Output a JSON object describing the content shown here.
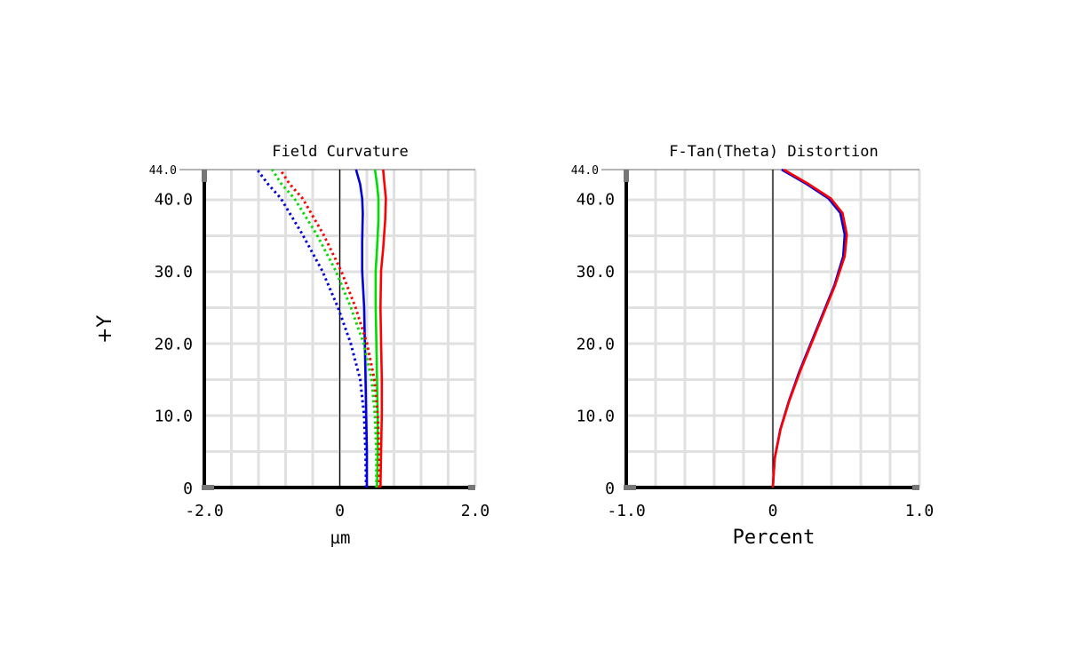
{
  "y_axis_label": "+Y",
  "colors": {
    "red": "#ff0000",
    "green": "#00dd00",
    "blue": "#0000dd",
    "grid": "#e0e0e0"
  },
  "chart_data": [
    {
      "type": "line",
      "title": "Field Curvature",
      "xlabel": "µm",
      "ylabel": "+Y",
      "xlim": [
        -2.0,
        2.0
      ],
      "ylim": [
        0,
        44.0
      ],
      "grid": true,
      "x_tick_labels": [
        {
          "value": -2.0,
          "text": "-2.0"
        },
        {
          "value": 0,
          "text": "0"
        },
        {
          "value": 2.0,
          "text": "2.0"
        }
      ],
      "y_tick_labels": [
        {
          "value": 0,
          "text": "0"
        },
        {
          "value": 10.0,
          "text": "10.0"
        },
        {
          "value": 20.0,
          "text": "20.0"
        },
        {
          "value": 30.0,
          "text": "30.0"
        },
        {
          "value": 40.0,
          "text": "40.0"
        }
      ],
      "y_max_label": "44.0",
      "series": [
        {
          "color": "red",
          "style": "solid",
          "points": [
            [
              0.6,
              0
            ],
            [
              0.61,
              5
            ],
            [
              0.62,
              10
            ],
            [
              0.62,
              15
            ],
            [
              0.61,
              20
            ],
            [
              0.6,
              25
            ],
            [
              0.61,
              30
            ],
            [
              0.64,
              33
            ],
            [
              0.67,
              37
            ],
            [
              0.68,
              40
            ],
            [
              0.66,
              42
            ],
            [
              0.64,
              44
            ]
          ]
        },
        {
          "color": "green",
          "style": "solid",
          "points": [
            [
              0.55,
              0
            ],
            [
              0.56,
              5
            ],
            [
              0.56,
              10
            ],
            [
              0.55,
              15
            ],
            [
              0.54,
              20
            ],
            [
              0.53,
              25
            ],
            [
              0.53,
              30
            ],
            [
              0.55,
              33
            ],
            [
              0.57,
              37
            ],
            [
              0.57,
              40
            ],
            [
              0.55,
              42
            ],
            [
              0.52,
              44
            ]
          ]
        },
        {
          "color": "blue",
          "style": "solid",
          "points": [
            [
              0.4,
              0
            ],
            [
              0.4,
              5
            ],
            [
              0.39,
              10
            ],
            [
              0.38,
              15
            ],
            [
              0.37,
              20
            ],
            [
              0.36,
              25
            ],
            [
              0.33,
              30
            ],
            [
              0.33,
              34
            ],
            [
              0.34,
              38
            ],
            [
              0.33,
              40
            ],
            [
              0.3,
              42
            ],
            [
              0.24,
              44
            ]
          ]
        },
        {
          "color": "red",
          "style": "dotted",
          "points": [
            [
              0.58,
              0
            ],
            [
              0.58,
              5
            ],
            [
              0.56,
              10
            ],
            [
              0.51,
              15
            ],
            [
              0.4,
              20
            ],
            [
              0.23,
              25
            ],
            [
              0.02,
              30
            ],
            [
              -0.24,
              35
            ],
            [
              -0.55,
              40
            ],
            [
              -0.74,
              42
            ],
            [
              -0.88,
              44
            ]
          ]
        },
        {
          "color": "green",
          "style": "dotted",
          "points": [
            [
              0.54,
              0
            ],
            [
              0.54,
              5
            ],
            [
              0.52,
              10
            ],
            [
              0.47,
              15
            ],
            [
              0.35,
              20
            ],
            [
              0.16,
              25
            ],
            [
              -0.06,
              30
            ],
            [
              -0.34,
              35
            ],
            [
              -0.67,
              40
            ],
            [
              -0.86,
              42
            ],
            [
              -1.0,
              44
            ]
          ]
        },
        {
          "color": "blue",
          "style": "dotted",
          "points": [
            [
              0.39,
              0
            ],
            [
              0.38,
              5
            ],
            [
              0.36,
              10
            ],
            [
              0.3,
              15
            ],
            [
              0.16,
              20
            ],
            [
              -0.03,
              25
            ],
            [
              -0.26,
              30
            ],
            [
              -0.55,
              35
            ],
            [
              -0.87,
              40
            ],
            [
              -1.06,
              42
            ],
            [
              -1.22,
              44
            ]
          ]
        }
      ]
    },
    {
      "type": "line",
      "title": "F-Tan(Theta) Distortion",
      "xlabel": "Percent",
      "ylabel": "+Y",
      "xlim": [
        -1.0,
        1.0
      ],
      "ylim": [
        0,
        44.0
      ],
      "grid": true,
      "x_tick_labels": [
        {
          "value": -1.0,
          "text": "-1.0"
        },
        {
          "value": 0,
          "text": "0"
        },
        {
          "value": 1.0,
          "text": "1.0"
        }
      ],
      "y_tick_labels": [
        {
          "value": 0,
          "text": "0"
        },
        {
          "value": 10.0,
          "text": "10.0"
        },
        {
          "value": 20.0,
          "text": "20.0"
        },
        {
          "value": 30.0,
          "text": "30.0"
        },
        {
          "value": 40.0,
          "text": "40.0"
        }
      ],
      "y_max_label": "44.0",
      "series": [
        {
          "color": "blue",
          "style": "solid",
          "points": [
            [
              0,
              0
            ],
            [
              0.012,
              4
            ],
            [
              0.05,
              8
            ],
            [
              0.11,
              12
            ],
            [
              0.18,
              16
            ],
            [
              0.26,
              20
            ],
            [
              0.34,
              24
            ],
            [
              0.42,
              28
            ],
            [
              0.48,
              32
            ],
            [
              0.49,
              35
            ],
            [
              0.46,
              38
            ],
            [
              0.38,
              40
            ],
            [
              0.23,
              42
            ],
            [
              0.06,
              44
            ]
          ]
        },
        {
          "color": "red",
          "style": "solid",
          "points": [
            [
              0,
              0
            ],
            [
              0.013,
              4
            ],
            [
              0.052,
              8
            ],
            [
              0.112,
              12
            ],
            [
              0.185,
              16
            ],
            [
              0.265,
              20
            ],
            [
              0.345,
              24
            ],
            [
              0.425,
              28
            ],
            [
              0.49,
              32
            ],
            [
              0.505,
              35
            ],
            [
              0.475,
              38
            ],
            [
              0.395,
              40
            ],
            [
              0.245,
              42
            ],
            [
              0.075,
              44
            ]
          ]
        }
      ]
    }
  ]
}
